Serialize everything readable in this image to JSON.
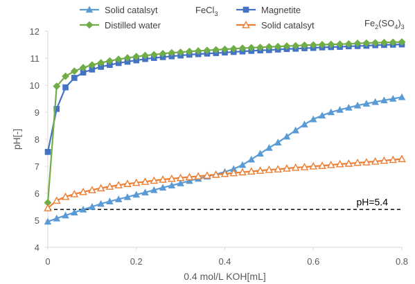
{
  "chart_data": {
    "type": "line",
    "xlabel": "0.4 mol/L KOH[mL]",
    "ylabel": "pH[-]",
    "xlim": [
      0,
      0.8
    ],
    "ylim": [
      4,
      12
    ],
    "xticks": [
      "0",
      "0.2",
      "0.4",
      "0.6",
      "0.8"
    ],
    "yticks": [
      "4",
      "5",
      "6",
      "7",
      "8",
      "9",
      "10",
      "11",
      "12"
    ],
    "grid": false,
    "legend": "top",
    "series": [
      {
        "name": "Solid catalsyt",
        "color": "#5b9bd5",
        "marker": "triangle-filled",
        "x": [
          0,
          0.02,
          0.04,
          0.06,
          0.08,
          0.1,
          0.12,
          0.14,
          0.16,
          0.18,
          0.2,
          0.22,
          0.24,
          0.26,
          0.28,
          0.3,
          0.32,
          0.34,
          0.36,
          0.38,
          0.4,
          0.42,
          0.44,
          0.46,
          0.48,
          0.5,
          0.52,
          0.54,
          0.56,
          0.58,
          0.6,
          0.62,
          0.64,
          0.66,
          0.68,
          0.7,
          0.72,
          0.74,
          0.76,
          0.78,
          0.8
        ],
        "y": [
          4.95,
          5.07,
          5.18,
          5.29,
          5.4,
          5.5,
          5.61,
          5.7,
          5.78,
          5.86,
          5.95,
          6.03,
          6.12,
          6.21,
          6.29,
          6.37,
          6.46,
          6.54,
          6.62,
          6.7,
          6.79,
          6.9,
          7.05,
          7.25,
          7.47,
          7.68,
          7.88,
          8.1,
          8.33,
          8.55,
          8.74,
          8.88,
          9.0,
          9.09,
          9.17,
          9.25,
          9.32,
          9.38,
          9.44,
          9.5,
          9.56
        ]
      },
      {
        "name": "Magnetite",
        "color": "#4472c4",
        "marker": "square-filled",
        "x": [
          0,
          0.02,
          0.04,
          0.06,
          0.08,
          0.1,
          0.12,
          0.14,
          0.16,
          0.18,
          0.2,
          0.22,
          0.24,
          0.26,
          0.28,
          0.3,
          0.32,
          0.34,
          0.36,
          0.38,
          0.4,
          0.42,
          0.44,
          0.46,
          0.48,
          0.5,
          0.52,
          0.54,
          0.56,
          0.58,
          0.6,
          0.62,
          0.64,
          0.66,
          0.68,
          0.7,
          0.72,
          0.74,
          0.76,
          0.78,
          0.8
        ],
        "y": [
          7.53,
          9.12,
          9.92,
          10.27,
          10.47,
          10.58,
          10.68,
          10.75,
          10.82,
          10.87,
          10.92,
          10.97,
          11.01,
          11.04,
          11.07,
          11.1,
          11.13,
          11.15,
          11.17,
          11.19,
          11.21,
          11.23,
          11.25,
          11.27,
          11.29,
          11.3,
          11.32,
          11.34,
          11.35,
          11.37,
          11.38,
          11.4,
          11.41,
          11.42,
          11.44,
          11.45,
          11.46,
          11.48,
          11.49,
          11.5,
          11.51
        ]
      },
      {
        "name": "Distilled water",
        "color": "#70ad47",
        "marker": "diamond-filled",
        "x": [
          0,
          0.02,
          0.04,
          0.06,
          0.08,
          0.1,
          0.12,
          0.14,
          0.16,
          0.18,
          0.2,
          0.22,
          0.24,
          0.26,
          0.28,
          0.3,
          0.32,
          0.34,
          0.36,
          0.38,
          0.4,
          0.42,
          0.44,
          0.46,
          0.48,
          0.5,
          0.52,
          0.54,
          0.56,
          0.58,
          0.6,
          0.62,
          0.64,
          0.66,
          0.68,
          0.7,
          0.72,
          0.74,
          0.76,
          0.78,
          0.8
        ],
        "y": [
          5.65,
          9.96,
          10.33,
          10.52,
          10.65,
          10.75,
          10.83,
          10.9,
          10.96,
          11.01,
          11.06,
          11.1,
          11.13,
          11.17,
          11.2,
          11.22,
          11.25,
          11.27,
          11.29,
          11.31,
          11.33,
          11.35,
          11.37,
          11.39,
          11.4,
          11.42,
          11.43,
          11.45,
          11.46,
          11.48,
          11.49,
          11.5,
          11.51,
          11.52,
          11.53,
          11.55,
          11.56,
          11.57,
          11.58,
          11.59,
          11.6
        ]
      },
      {
        "name": "Solid catalsyt",
        "color": "#ed7d31",
        "marker": "triangle-open",
        "x": [
          0,
          0.02,
          0.04,
          0.06,
          0.08,
          0.1,
          0.12,
          0.14,
          0.16,
          0.18,
          0.2,
          0.22,
          0.24,
          0.26,
          0.28,
          0.3,
          0.32,
          0.34,
          0.36,
          0.38,
          0.4,
          0.42,
          0.44,
          0.46,
          0.48,
          0.5,
          0.52,
          0.54,
          0.56,
          0.58,
          0.6,
          0.62,
          0.64,
          0.66,
          0.68,
          0.7,
          0.72,
          0.74,
          0.76,
          0.78,
          0.8
        ],
        "y": [
          5.45,
          5.73,
          5.87,
          5.97,
          6.05,
          6.12,
          6.19,
          6.25,
          6.3,
          6.35,
          6.39,
          6.43,
          6.47,
          6.51,
          6.54,
          6.57,
          6.6,
          6.63,
          6.66,
          6.69,
          6.72,
          6.75,
          6.78,
          6.81,
          6.84,
          6.87,
          6.89,
          6.92,
          6.95,
          6.97,
          7.0,
          7.02,
          7.05,
          7.08,
          7.1,
          7.13,
          7.15,
          7.18,
          7.21,
          7.24,
          7.27
        ]
      }
    ],
    "reference_line": {
      "y": 5.4,
      "label": "pH=5.4",
      "style": "dashed",
      "color": "#000000"
    },
    "annotations": [
      {
        "base": "FeCl",
        "sub": "3",
        "tail": "",
        "sub2": ""
      },
      {
        "base": "Fe",
        "sub": "2",
        "tail": "(SO",
        "sub2": "4",
        "tail2": ")",
        "sub3": "3"
      }
    ],
    "axis_color": "#d9d9d9"
  }
}
